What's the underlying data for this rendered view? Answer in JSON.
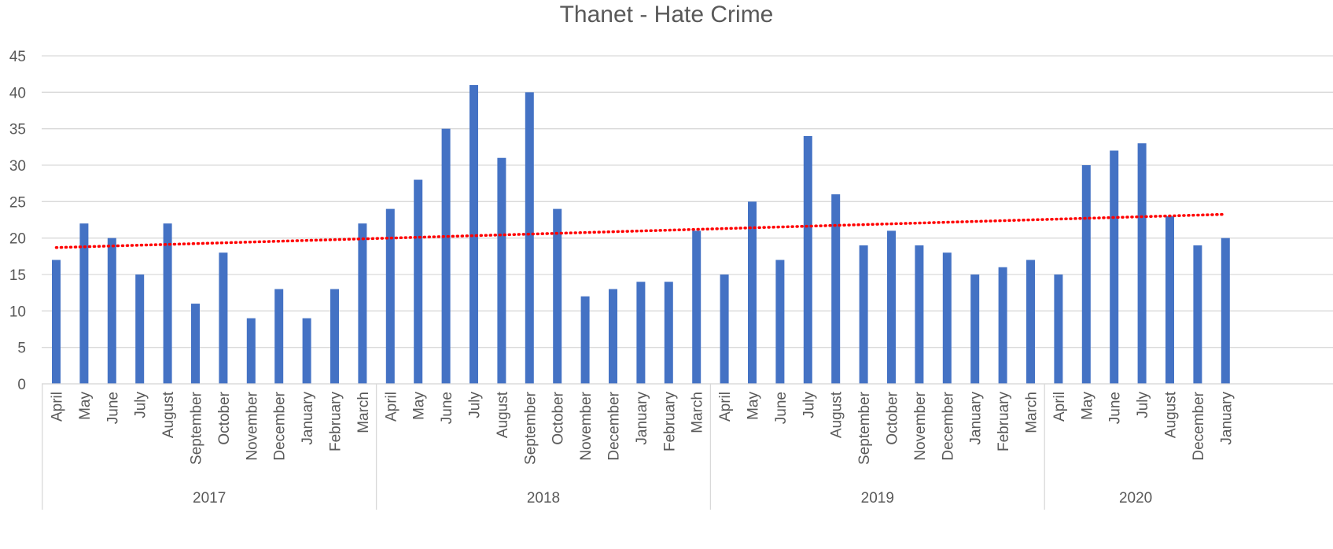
{
  "chart_data": {
    "type": "bar",
    "title": "Thanet - Hate Crime",
    "xlabel": "",
    "ylabel": "",
    "ylim": [
      0,
      45
    ],
    "yticks": [
      0,
      5,
      10,
      15,
      20,
      25,
      30,
      35,
      40,
      45
    ],
    "grid": true,
    "legend": "none",
    "colors": {
      "bar": "#4472C4",
      "trendline": "#FF0000",
      "grid": "#D9D9D9",
      "text": "#595959"
    },
    "trendline": {
      "type": "linear",
      "style": "dotted"
    },
    "groups": [
      {
        "label": "2017",
        "categories": [
          "April",
          "May",
          "June",
          "July",
          "August",
          "September",
          "October",
          "November",
          "December",
          "January",
          "February",
          "March"
        ],
        "values": [
          17,
          22,
          20,
          15,
          22,
          11,
          18,
          9,
          13,
          9,
          13,
          22
        ]
      },
      {
        "label": "2018",
        "categories": [
          "April",
          "May",
          "June",
          "July",
          "August",
          "September",
          "October",
          "November",
          "December",
          "January",
          "February",
          "March"
        ],
        "values": [
          24,
          28,
          35,
          41,
          31,
          40,
          24,
          12,
          13,
          14,
          14,
          21
        ]
      },
      {
        "label": "2019",
        "categories": [
          "April",
          "May",
          "June",
          "July",
          "August",
          "September",
          "October",
          "November",
          "December",
          "January",
          "February",
          "March"
        ],
        "values": [
          15,
          25,
          17,
          34,
          26,
          19,
          21,
          19,
          18,
          15,
          16,
          17
        ]
      },
      {
        "label": "2020",
        "categories": [
          "April",
          "May",
          "June",
          "July",
          "August",
          "December",
          "January"
        ],
        "values": [
          15,
          30,
          32,
          33,
          23,
          19,
          20
        ]
      }
    ]
  }
}
